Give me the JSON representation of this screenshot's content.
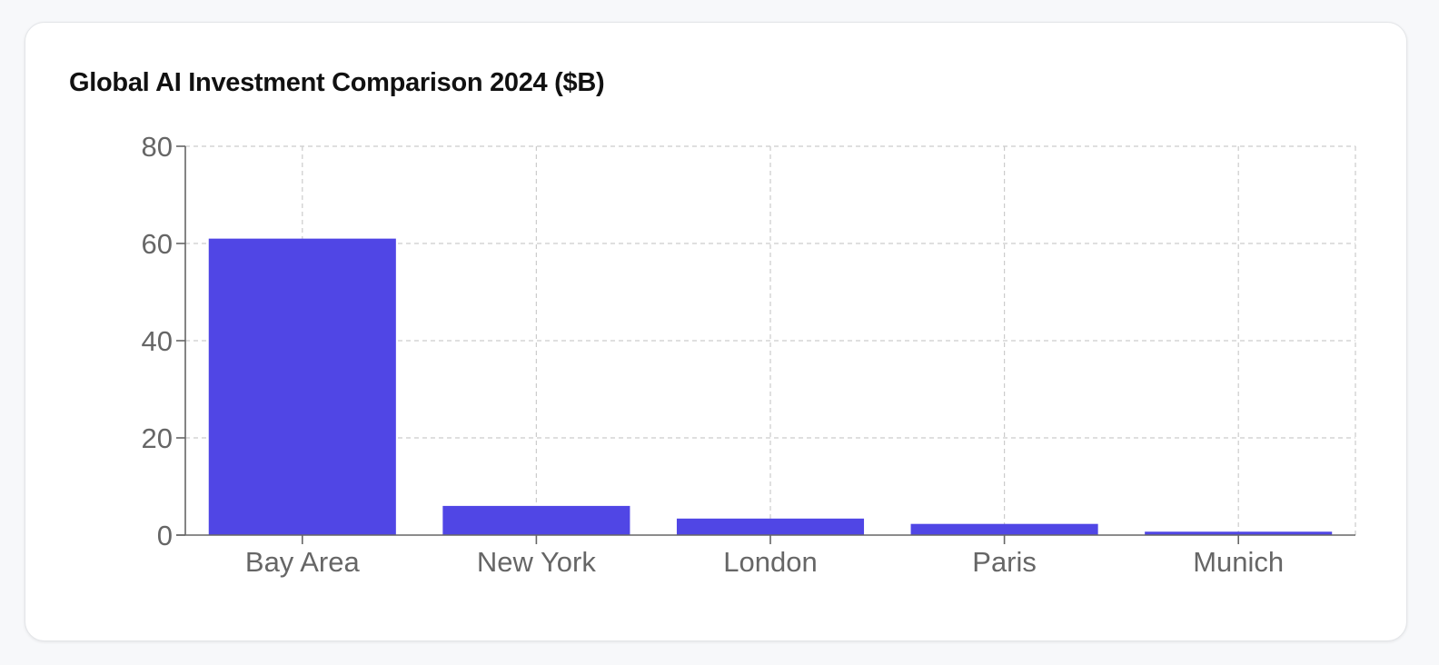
{
  "card": {
    "title": "Global AI Investment Comparison 2024 ($B)"
  },
  "colors": {
    "bar": "#5046e5",
    "grid": "#cccccc",
    "axis": "#666666",
    "tick_text": "#666666"
  },
  "chart_data": {
    "type": "bar",
    "title": "Global AI Investment Comparison 2024 ($B)",
    "categories": [
      "Bay Area",
      "New York",
      "London",
      "Paris",
      "Munich"
    ],
    "values": [
      61,
      6,
      3.4,
      2.3,
      0.7
    ],
    "ylim": [
      0,
      80
    ],
    "yticks": [
      0,
      20,
      40,
      60,
      80
    ],
    "xlabel": "",
    "ylabel": "",
    "grid": true,
    "grid_style": "dashed",
    "legend": "none"
  }
}
